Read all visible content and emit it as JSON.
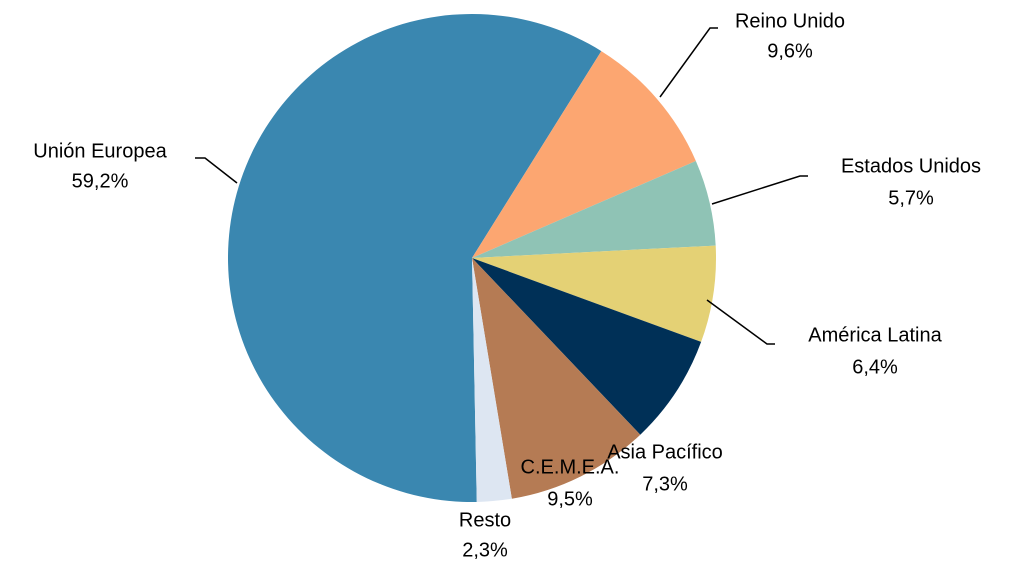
{
  "chart_data": {
    "type": "pie",
    "categories": [
      "Unión Europea",
      "Reino Unido",
      "Estados Unidos",
      "América Latina",
      "Asia Pacífico",
      "C.E.M.E.A.",
      "Resto"
    ],
    "values": [
      59.2,
      9.6,
      5.7,
      6.4,
      7.3,
      9.5,
      2.3
    ],
    "value_labels": [
      "59,2%",
      "9,6%",
      "5,7%",
      "6,4%",
      "7,3%",
      "9,5%",
      "2,3%"
    ],
    "colors": [
      "#3a87b0",
      "#fca671",
      "#8fc3b5",
      "#e4d175",
      "#003057",
      "#b57b54",
      "#dde6f2"
    ]
  }
}
